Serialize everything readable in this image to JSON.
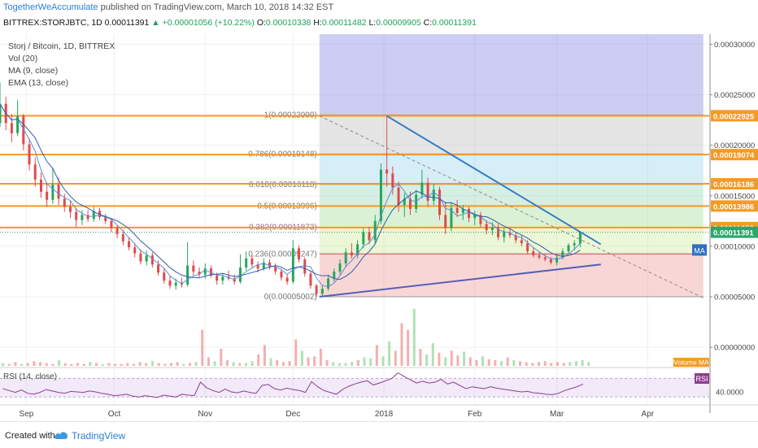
{
  "header": {
    "author": "TogetherWeAccumulate",
    "published_text": "published on TradingView.com, March 10, 2018 14:32 EST",
    "symbol": "BITTREX:STORJBTC, 1D",
    "last": "0.00011391",
    "change": "+0.00001056 (+10.22%)",
    "o_label": "O:",
    "o": "0.00010338",
    "h_label": "H:",
    "h": "0.00011482",
    "l_label": "L:",
    "l": "0.00009905",
    "c_label": "C:",
    "c": "0.00011391"
  },
  "footer": {
    "created_with": "Created with",
    "brand": "TradingView"
  },
  "chart_data": {
    "type": "candlestick",
    "legend": [
      "Storj / Bitcoin, 1D, BITTREX",
      "Vol (20)",
      "MA (9, close)",
      "EMA (13, close)"
    ],
    "price_axis": {
      "ticks": [
        "0.00030000",
        "0.00025000",
        "0.00020000",
        "0.00015000",
        "0.00010000",
        "0.00005000",
        "0.00000000"
      ],
      "tick_values": [
        0.0003,
        0.00025,
        0.0002,
        0.00015,
        0.0001,
        5e-05,
        0.0
      ],
      "range": [
        -2e-05,
        0.00031
      ]
    },
    "x_axis": {
      "labels": [
        "Sep",
        "Oct",
        "Nov",
        "Dec",
        "2018",
        "Feb",
        "Mar",
        "Apr"
      ],
      "label_days": [
        0,
        30,
        61,
        91,
        122,
        153,
        181,
        212
      ],
      "day_range": [
        -9,
        233
      ]
    },
    "candles": [
      {
        "d": -9,
        "o": 0.000222,
        "h": 0.000262,
        "l": 0.000218,
        "c": 0.000241
      },
      {
        "d": -7,
        "o": 0.000241,
        "h": 0.000248,
        "l": 0.000215,
        "c": 0.000222
      },
      {
        "d": -5,
        "o": 0.000222,
        "h": 0.000231,
        "l": 0.000203,
        "c": 0.000212
      },
      {
        "d": -3,
        "o": 0.000212,
        "h": 0.000245,
        "l": 0.000209,
        "c": 0.000229
      },
      {
        "d": -1,
        "o": 0.000229,
        "h": 0.000231,
        "l": 0.000195,
        "c": 0.000201
      },
      {
        "d": 1,
        "o": 0.000201,
        "h": 0.000207,
        "l": 0.000175,
        "c": 0.000181
      },
      {
        "d": 3,
        "o": 0.000181,
        "h": 0.000188,
        "l": 0.000159,
        "c": 0.000166
      },
      {
        "d": 5,
        "o": 0.000166,
        "h": 0.000173,
        "l": 0.000148,
        "c": 0.000154
      },
      {
        "d": 7,
        "o": 0.000154,
        "h": 0.000163,
        "l": 0.000139,
        "c": 0.000146
      },
      {
        "d": 9,
        "o": 0.000146,
        "h": 0.000178,
        "l": 0.000142,
        "c": 0.000161
      },
      {
        "d": 11,
        "o": 0.000161,
        "h": 0.000168,
        "l": 0.000141,
        "c": 0.000147
      },
      {
        "d": 13,
        "o": 0.000147,
        "h": 0.000152,
        "l": 0.000134,
        "c": 0.000139
      },
      {
        "d": 15,
        "o": 0.000139,
        "h": 0.000145,
        "l": 0.000128,
        "c": 0.000134
      },
      {
        "d": 17,
        "o": 0.000134,
        "h": 0.000138,
        "l": 0.000119,
        "c": 0.000126
      },
      {
        "d": 19,
        "o": 0.000126,
        "h": 0.000136,
        "l": 0.000121,
        "c": 0.000131
      },
      {
        "d": 21,
        "o": 0.000131,
        "h": 0.000136,
        "l": 0.000124,
        "c": 0.000127
      },
      {
        "d": 23,
        "o": 0.000127,
        "h": 0.000139,
        "l": 0.000124,
        "c": 0.000135
      },
      {
        "d": 25,
        "o": 0.000135,
        "h": 0.000138,
        "l": 0.000126,
        "c": 0.000129
      },
      {
        "d": 27,
        "o": 0.000129,
        "h": 0.000132,
        "l": 0.000122,
        "c": 0.000125
      },
      {
        "d": 29,
        "o": 0.000125,
        "h": 0.000128,
        "l": 0.000114,
        "c": 0.000118
      },
      {
        "d": 31,
        "o": 0.000118,
        "h": 0.000121,
        "l": 0.000108,
        "c": 0.000112
      },
      {
        "d": 33,
        "o": 0.000112,
        "h": 0.000116,
        "l": 0.000101,
        "c": 0.000105
      },
      {
        "d": 35,
        "o": 0.000105,
        "h": 0.000109,
        "l": 9.6e-05,
        "c": 9.9e-05
      },
      {
        "d": 37,
        "o": 9.9e-05,
        "h": 0.000103,
        "l": 8.9e-05,
        "c": 9.3e-05
      },
      {
        "d": 39,
        "o": 9.3e-05,
        "h": 9.7e-05,
        "l": 8.2e-05,
        "c": 8.5e-05
      },
      {
        "d": 41,
        "o": 8.5e-05,
        "h": 9.6e-05,
        "l": 8.1e-05,
        "c": 9.1e-05
      },
      {
        "d": 43,
        "o": 9.1e-05,
        "h": 9.4e-05,
        "l": 7.9e-05,
        "c": 8.2e-05
      },
      {
        "d": 45,
        "o": 8.2e-05,
        "h": 8.6e-05,
        "l": 7.1e-05,
        "c": 7.4e-05
      },
      {
        "d": 47,
        "o": 7.4e-05,
        "h": 7.8e-05,
        "l": 6.3e-05,
        "c": 6.6e-05
      },
      {
        "d": 49,
        "o": 6.6e-05,
        "h": 7.1e-05,
        "l": 5.8e-05,
        "c": 6.1e-05
      },
      {
        "d": 51,
        "o": 6.1e-05,
        "h": 6.8e-05,
        "l": 5.7e-05,
        "c": 6.4e-05
      },
      {
        "d": 53,
        "o": 6.4e-05,
        "h": 6.9e-05,
        "l": 5.9e-05,
        "c": 6.2e-05
      },
      {
        "d": 55,
        "o": 6.2e-05,
        "h": 0.000104,
        "l": 6e-05,
        "c": 8.1e-05
      },
      {
        "d": 57,
        "o": 8.1e-05,
        "h": 8.6e-05,
        "l": 7.1e-05,
        "c": 7.5e-05
      },
      {
        "d": 59,
        "o": 7.5e-05,
        "h": 7.9e-05,
        "l": 6.9e-05,
        "c": 7.2e-05
      },
      {
        "d": 61,
        "o": 7.2e-05,
        "h": 8.3e-05,
        "l": 6.8e-05,
        "c": 7.8e-05
      },
      {
        "d": 63,
        "o": 7.8e-05,
        "h": 8.1e-05,
        "l": 6.9e-05,
        "c": 7.1e-05
      },
      {
        "d": 65,
        "o": 7.1e-05,
        "h": 7.4e-05,
        "l": 6.2e-05,
        "c": 6.6e-05
      },
      {
        "d": 67,
        "o": 6.6e-05,
        "h": 7.3e-05,
        "l": 6.2e-05,
        "c": 7e-05
      },
      {
        "d": 69,
        "o": 7e-05,
        "h": 7.6e-05,
        "l": 6.6e-05,
        "c": 6.8e-05
      },
      {
        "d": 71,
        "o": 6.8e-05,
        "h": 7.2e-05,
        "l": 6.2e-05,
        "c": 6.5e-05
      },
      {
        "d": 73,
        "o": 6.5e-05,
        "h": 9.2e-05,
        "l": 6.3e-05,
        "c": 7.9e-05
      },
      {
        "d": 75,
        "o": 7.9e-05,
        "h": 9.5e-05,
        "l": 7.6e-05,
        "c": 8.8e-05
      },
      {
        "d": 77,
        "o": 8.8e-05,
        "h": 9.1e-05,
        "l": 7.9e-05,
        "c": 8.2e-05
      },
      {
        "d": 79,
        "o": 8.2e-05,
        "h": 8.5e-05,
        "l": 7.4e-05,
        "c": 7.8e-05
      },
      {
        "d": 81,
        "o": 7.8e-05,
        "h": 8.8e-05,
        "l": 7.6e-05,
        "c": 8.4e-05
      },
      {
        "d": 83,
        "o": 8.4e-05,
        "h": 8.7e-05,
        "l": 7.7e-05,
        "c": 8e-05
      },
      {
        "d": 85,
        "o": 8e-05,
        "h": 8.3e-05,
        "l": 7.2e-05,
        "c": 7.5e-05
      },
      {
        "d": 87,
        "o": 7.5e-05,
        "h": 7.8e-05,
        "l": 6.6e-05,
        "c": 6.9e-05
      },
      {
        "d": 89,
        "o": 6.9e-05,
        "h": 7.2e-05,
        "l": 6.2e-05,
        "c": 6.5e-05
      },
      {
        "d": 91,
        "o": 6.5e-05,
        "h": 0.000106,
        "l": 6.3e-05,
        "c": 9.8e-05
      },
      {
        "d": 93,
        "o": 9.8e-05,
        "h": 0.000101,
        "l": 8.4e-05,
        "c": 8.7e-05
      },
      {
        "d": 95,
        "o": 8.7e-05,
        "h": 8.9e-05,
        "l": 7e-05,
        "c": 7.3e-05
      },
      {
        "d": 97,
        "o": 7.3e-05,
        "h": 7.6e-05,
        "l": 5.8e-05,
        "c": 6.1e-05
      },
      {
        "d": 99,
        "o": 6.1e-05,
        "h": 6.3e-05,
        "l": 5e-05,
        "c": 5.3e-05
      },
      {
        "d": 101,
        "o": 5.3e-05,
        "h": 6.1e-05,
        "l": 5e-05,
        "c": 5.8e-05
      },
      {
        "d": 103,
        "o": 5.8e-05,
        "h": 7.2e-05,
        "l": 5.6e-05,
        "c": 6.8e-05
      },
      {
        "d": 105,
        "o": 6.8e-05,
        "h": 7.8e-05,
        "l": 6.5e-05,
        "c": 7.5e-05
      },
      {
        "d": 107,
        "o": 7.5e-05,
        "h": 8.7e-05,
        "l": 7.2e-05,
        "c": 8.3e-05
      },
      {
        "d": 109,
        "o": 8.3e-05,
        "h": 9.8e-05,
        "l": 7.9e-05,
        "c": 9.4e-05
      },
      {
        "d": 111,
        "o": 9.4e-05,
        "h": 0.000103,
        "l": 8.8e-05,
        "c": 9.1e-05
      },
      {
        "d": 113,
        "o": 9.1e-05,
        "h": 0.000106,
        "l": 8.8e-05,
        "c": 0.000102
      },
      {
        "d": 115,
        "o": 0.000102,
        "h": 0.000118,
        "l": 9.8e-05,
        "c": 0.000114
      },
      {
        "d": 117,
        "o": 0.000114,
        "h": 0.000119,
        "l": 0.000102,
        "c": 0.000106
      },
      {
        "d": 119,
        "o": 0.000106,
        "h": 0.000131,
        "l": 0.000103,
        "c": 0.000125
      },
      {
        "d": 121,
        "o": 0.000125,
        "h": 0.000182,
        "l": 0.000122,
        "c": 0.000176
      },
      {
        "d": 123,
        "o": 0.000176,
        "h": 0.000229,
        "l": 0.000159,
        "c": 0.000172
      },
      {
        "d": 125,
        "o": 0.000172,
        "h": 0.000179,
        "l": 0.000151,
        "c": 0.000158
      },
      {
        "d": 127,
        "o": 0.000158,
        "h": 0.000164,
        "l": 0.000134,
        "c": 0.000141
      },
      {
        "d": 129,
        "o": 0.000141,
        "h": 0.000153,
        "l": 0.000129,
        "c": 0.000147
      },
      {
        "d": 131,
        "o": 0.000147,
        "h": 0.000154,
        "l": 0.000131,
        "c": 0.000137
      },
      {
        "d": 133,
        "o": 0.000137,
        "h": 0.000156,
        "l": 0.000133,
        "c": 0.000151
      },
      {
        "d": 135,
        "o": 0.000151,
        "h": 0.000176,
        "l": 0.000147,
        "c": 0.000163
      },
      {
        "d": 137,
        "o": 0.000163,
        "h": 0.000168,
        "l": 0.000139,
        "c": 0.000145
      },
      {
        "d": 139,
        "o": 0.000145,
        "h": 0.000162,
        "l": 0.000141,
        "c": 0.000156
      },
      {
        "d": 141,
        "o": 0.000156,
        "h": 0.000159,
        "l": 0.000126,
        "c": 0.000131
      },
      {
        "d": 143,
        "o": 0.000131,
        "h": 0.000144,
        "l": 0.000112,
        "c": 0.000118
      },
      {
        "d": 145,
        "o": 0.000118,
        "h": 0.000143,
        "l": 0.000115,
        "c": 0.000138
      },
      {
        "d": 147,
        "o": 0.000138,
        "h": 0.000146,
        "l": 0.000129,
        "c": 0.000133
      },
      {
        "d": 149,
        "o": 0.000133,
        "h": 0.000141,
        "l": 0.000126,
        "c": 0.000137
      },
      {
        "d": 151,
        "o": 0.000137,
        "h": 0.000139,
        "l": 0.000124,
        "c": 0.000128
      },
      {
        "d": 153,
        "o": 0.000128,
        "h": 0.000135,
        "l": 0.000121,
        "c": 0.000131
      },
      {
        "d": 155,
        "o": 0.000131,
        "h": 0.000134,
        "l": 0.000119,
        "c": 0.000122
      },
      {
        "d": 157,
        "o": 0.000122,
        "h": 0.000126,
        "l": 0.000112,
        "c": 0.000116
      },
      {
        "d": 159,
        "o": 0.000116,
        "h": 0.000124,
        "l": 0.000111,
        "c": 0.000119
      },
      {
        "d": 161,
        "o": 0.000119,
        "h": 0.000122,
        "l": 0.000106,
        "c": 0.000109
      },
      {
        "d": 163,
        "o": 0.000109,
        "h": 0.000118,
        "l": 0.000104,
        "c": 0.000114
      },
      {
        "d": 165,
        "o": 0.000114,
        "h": 0.000119,
        "l": 0.000108,
        "c": 0.000111
      },
      {
        "d": 167,
        "o": 0.000111,
        "h": 0.000114,
        "l": 0.000103,
        "c": 0.000106
      },
      {
        "d": 169,
        "o": 0.000106,
        "h": 0.000111,
        "l": 0.0001,
        "c": 0.000103
      },
      {
        "d": 171,
        "o": 0.000103,
        "h": 0.000106,
        "l": 9.2e-05,
        "c": 9.5e-05
      },
      {
        "d": 173,
        "o": 9.5e-05,
        "h": 9.9e-05,
        "l": 8.9e-05,
        "c": 9.1e-05
      },
      {
        "d": 175,
        "o": 9.1e-05,
        "h": 9.5e-05,
        "l": 8.7e-05,
        "c": 8.9e-05
      },
      {
        "d": 177,
        "o": 8.9e-05,
        "h": 9.2e-05,
        "l": 8.5e-05,
        "c": 8.7e-05
      },
      {
        "d": 179,
        "o": 8.7e-05,
        "h": 8.9e-05,
        "l": 8.2e-05,
        "c": 8.4e-05
      },
      {
        "d": 181,
        "o": 8.4e-05,
        "h": 9.2e-05,
        "l": 8.1e-05,
        "c": 8.9e-05
      },
      {
        "d": 183,
        "o": 8.9e-05,
        "h": 9.8e-05,
        "l": 8.7e-05,
        "c": 9.5e-05
      },
      {
        "d": 185,
        "o": 9.5e-05,
        "h": 0.000103,
        "l": 9.2e-05,
        "c": 0.000101
      },
      {
        "d": 187,
        "o": 0.000101,
        "h": 0.000106,
        "l": 9.6e-05,
        "c": 0.000103
      },
      {
        "d": 189,
        "o": 0.000103,
        "h": 0.000115,
        "l": 9.9e-05,
        "c": 0.000114
      }
    ],
    "fibonacci": [
      {
        "label": "1(0.00022999)",
        "value": 0.00022999
      },
      {
        "label": "0.786(0.00019148)",
        "value": 0.00019148
      },
      {
        "label": "0.618(0.00016118)",
        "value": 0.00016118
      },
      {
        "label": "0.5(0.00013996)",
        "value": 0.00013996
      },
      {
        "label": "0.382(0.00011873)",
        "value": 0.00011873
      },
      {
        "label": "0.236(0.00009247)",
        "value": 9.247e-05
      },
      {
        "label": "0(0.00005002)",
        "value": 5.002e-05
      }
    ],
    "fib_range_days": [
      100,
      231
    ],
    "horizontal_lines": [
      {
        "label": "0.00022925",
        "value": 0.00022925
      },
      {
        "label": "0.00019074",
        "value": 0.00019074
      },
      {
        "label": "0.00016186",
        "value": 0.00016186
      },
      {
        "label": "0.00013986",
        "value": 0.00013986
      },
      {
        "label": "0.00011853",
        "value": 0.00011853
      }
    ],
    "last_price_label": "0.00011391",
    "last_price": 0.00011391,
    "ma_badge": "MA",
    "trend_lines": [
      {
        "from": [
          123,
          0.000229
        ],
        "to": [
          196,
          0.000102
        ]
      },
      {
        "from": [
          100,
          5e-05
        ],
        "to": [
          196,
          8.2e-05
        ]
      }
    ],
    "dashed_line": {
      "from": [
        100,
        0.000229
      ],
      "to": [
        231,
        4.9e-05
      ]
    },
    "volume_label": "Volume MA",
    "volumes": [
      3,
      2,
      4,
      2,
      3,
      5,
      4,
      3,
      2,
      6,
      3,
      2,
      3,
      2,
      4,
      3,
      2,
      3,
      2,
      2,
      3,
      2,
      4,
      3,
      5,
      3,
      2,
      3,
      4,
      2,
      3,
      4,
      38,
      9,
      5,
      18,
      6,
      4,
      3,
      3,
      5,
      12,
      22,
      8,
      6,
      4,
      5,
      28,
      16,
      9,
      10,
      18,
      6,
      4,
      3,
      3,
      4,
      6,
      9,
      8,
      22,
      10,
      26,
      16,
      45,
      38,
      60,
      18,
      12,
      24,
      14,
      9,
      16,
      11,
      15,
      9,
      6,
      10,
      7,
      6,
      5,
      9,
      6,
      5,
      4,
      3,
      4,
      5,
      3,
      4,
      3,
      4,
      5,
      6,
      4
    ],
    "rsi": {
      "title": "RSI (14, close)",
      "badge": "RSI",
      "tick": "40.0000",
      "bands": [
        70,
        30
      ],
      "values": [
        48,
        44,
        40,
        45,
        38,
        36,
        40,
        46,
        43,
        40,
        38,
        42,
        41,
        40,
        43,
        41,
        38,
        36,
        33,
        34,
        36,
        32,
        30,
        33,
        31,
        29,
        34,
        32,
        30,
        36,
        34,
        33,
        62,
        50,
        44,
        40,
        47,
        41,
        39,
        43,
        40,
        38,
        55,
        57,
        48,
        45,
        49,
        46,
        44,
        40,
        63,
        52,
        44,
        40,
        36,
        46,
        53,
        58,
        62,
        65,
        56,
        60,
        65,
        70,
        82,
        74,
        67,
        60,
        64,
        60,
        62,
        68,
        58,
        62,
        55,
        48,
        52,
        50,
        48,
        52,
        49,
        47,
        45,
        43,
        41,
        42,
        39,
        38,
        36,
        35,
        38,
        44,
        48,
        52,
        58
      ]
    }
  }
}
